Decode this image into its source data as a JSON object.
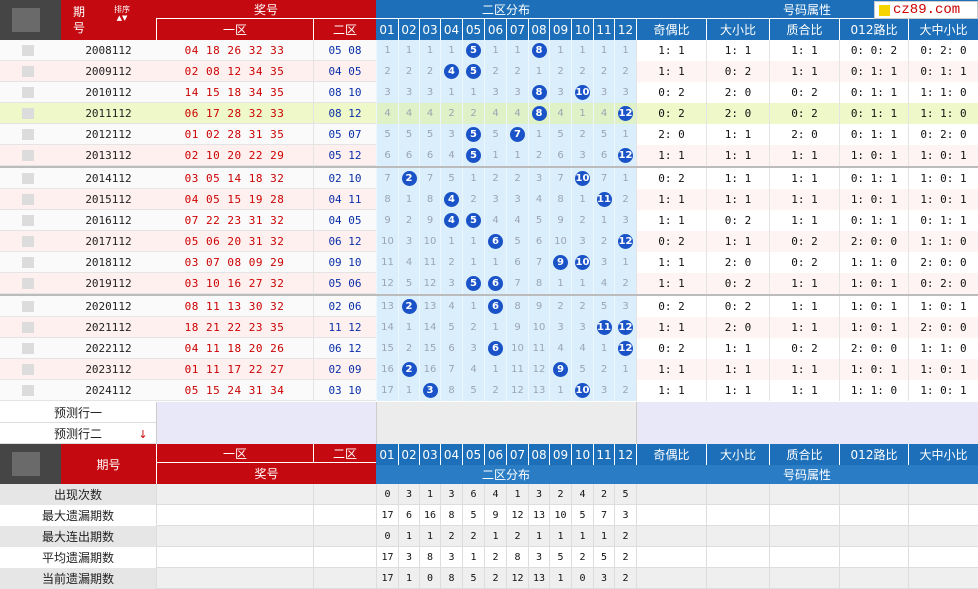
{
  "header": {
    "issue_label": "期号",
    "sort_label": "排序",
    "prize_label": "奖号",
    "zone1_label": "一区",
    "zone2_label": "二区",
    "dist_label": "二区分布",
    "attr_label": "号码属性",
    "dist_cols": [
      "01",
      "02",
      "03",
      "04",
      "05",
      "06",
      "07",
      "08",
      "09",
      "10",
      "11",
      "12"
    ],
    "attr_cols": [
      "奇偶比",
      "大小比",
      "质合比",
      "012路比",
      "大中小比"
    ]
  },
  "logo_text": "cz89.com",
  "rows": [
    {
      "issue": "2008112",
      "z1": "04 18 26 32 33",
      "z2": "05 08",
      "dist": [
        "1",
        "1",
        "1",
        "1",
        "5",
        "1",
        "1",
        "8",
        "1",
        "1",
        "1",
        "1"
      ],
      "balls": [
        5,
        8
      ],
      "attrs": [
        "1: 1",
        "1: 1",
        "1: 1",
        "0: 0: 2",
        "0: 2: 0"
      ]
    },
    {
      "issue": "2009112",
      "z1": "02 08 12 34 35",
      "z2": "04 05",
      "dist": [
        "2",
        "2",
        "2",
        "4",
        "5",
        "2",
        "2",
        "1",
        "2",
        "2",
        "2",
        "2"
      ],
      "balls": [
        4,
        5
      ],
      "attrs": [
        "1: 1",
        "0: 2",
        "1: 1",
        "0: 1: 1",
        "0: 1: 1"
      ]
    },
    {
      "issue": "2010112",
      "z1": "14 15 18 34 35",
      "z2": "08 10",
      "dist": [
        "3",
        "3",
        "3",
        "1",
        "1",
        "3",
        "3",
        "8",
        "3",
        "10",
        "3",
        "3"
      ],
      "balls": [
        8,
        10
      ],
      "attrs": [
        "0: 2",
        "2: 0",
        "0: 2",
        "0: 1: 1",
        "1: 1: 0"
      ]
    },
    {
      "issue": "2011112",
      "z1": "06 17 28 32 33",
      "z2": "08 12",
      "dist": [
        "4",
        "4",
        "4",
        "2",
        "2",
        "4",
        "4",
        "8",
        "4",
        "1",
        "4",
        "12"
      ],
      "balls": [
        8,
        12
      ],
      "attrs": [
        "0: 2",
        "2: 0",
        "0: 2",
        "0: 1: 1",
        "1: 1: 0"
      ]
    },
    {
      "issue": "2012112",
      "z1": "01 02 28 31 35",
      "z2": "05 07",
      "dist": [
        "5",
        "5",
        "5",
        "3",
        "5",
        "5",
        "7",
        "1",
        "5",
        "2",
        "5",
        "1"
      ],
      "balls": [
        5,
        7
      ],
      "attrs": [
        "2: 0",
        "1: 1",
        "2: 0",
        "0: 1: 1",
        "0: 2: 0"
      ]
    },
    {
      "issue": "2013112",
      "z1": "02 10 20 22 29",
      "z2": "05 12",
      "dist": [
        "6",
        "6",
        "6",
        "4",
        "5",
        "1",
        "1",
        "2",
        "6",
        "3",
        "6",
        "12"
      ],
      "balls": [
        5,
        12
      ],
      "attrs": [
        "1: 1",
        "1: 1",
        "1: 1",
        "1: 0: 1",
        "1: 0: 1"
      ]
    },
    {
      "issue": "2014112",
      "z1": "03 05 14 18 32",
      "z2": "02 10",
      "dist": [
        "7",
        "2",
        "7",
        "5",
        "1",
        "2",
        "2",
        "3",
        "7",
        "10",
        "7",
        "1"
      ],
      "balls": [
        2,
        10
      ],
      "attrs": [
        "0: 2",
        "1: 1",
        "1: 1",
        "0: 1: 1",
        "1: 0: 1"
      ]
    },
    {
      "issue": "2015112",
      "z1": "04 05 15 19 28",
      "z2": "04 11",
      "dist": [
        "8",
        "1",
        "8",
        "4",
        "2",
        "3",
        "3",
        "4",
        "8",
        "1",
        "11",
        "2"
      ],
      "balls": [
        4,
        11
      ],
      "attrs": [
        "1: 1",
        "1: 1",
        "1: 1",
        "1: 0: 1",
        "1: 0: 1"
      ]
    },
    {
      "issue": "2016112",
      "z1": "07 22 23 31 32",
      "z2": "04 05",
      "dist": [
        "9",
        "2",
        "9",
        "4",
        "5",
        "4",
        "4",
        "5",
        "9",
        "2",
        "1",
        "3"
      ],
      "balls": [
        4,
        5
      ],
      "attrs": [
        "1: 1",
        "0: 2",
        "1: 1",
        "0: 1: 1",
        "0: 1: 1"
      ]
    },
    {
      "issue": "2017112",
      "z1": "05 06 20 31 32",
      "z2": "06 12",
      "dist": [
        "10",
        "3",
        "10",
        "1",
        "1",
        "6",
        "5",
        "6",
        "10",
        "3",
        "2",
        "12"
      ],
      "balls": [
        6,
        12
      ],
      "attrs": [
        "0: 2",
        "1: 1",
        "0: 2",
        "2: 0: 0",
        "1: 1: 0"
      ]
    },
    {
      "issue": "2018112",
      "z1": "03 07 08 09 29",
      "z2": "09 10",
      "dist": [
        "11",
        "4",
        "11",
        "2",
        "1",
        "1",
        "6",
        "7",
        "9",
        "10",
        "3",
        "1"
      ],
      "balls": [
        9,
        10
      ],
      "attrs": [
        "1: 1",
        "2: 0",
        "0: 2",
        "1: 1: 0",
        "2: 0: 0"
      ]
    },
    {
      "issue": "2019112",
      "z1": "03 10 16 27 32",
      "z2": "05 06",
      "dist": [
        "12",
        "5",
        "12",
        "3",
        "5",
        "6",
        "7",
        "8",
        "1",
        "1",
        "4",
        "2"
      ],
      "balls": [
        5,
        6
      ],
      "attrs": [
        "1: 1",
        "0: 2",
        "1: 1",
        "1: 0: 1",
        "0: 2: 0"
      ]
    },
    {
      "issue": "2020112",
      "z1": "08 11 13 30 32",
      "z2": "02 06",
      "dist": [
        "13",
        "2",
        "13",
        "4",
        "1",
        "6",
        "8",
        "9",
        "2",
        "2",
        "5",
        "3"
      ],
      "balls": [
        2,
        6
      ],
      "attrs": [
        "0: 2",
        "0: 2",
        "1: 1",
        "1: 0: 1",
        "1: 0: 1"
      ]
    },
    {
      "issue": "2021112",
      "z1": "18 21 22 23 35",
      "z2": "11 12",
      "dist": [
        "14",
        "1",
        "14",
        "5",
        "2",
        "1",
        "9",
        "10",
        "3",
        "3",
        "11",
        "12"
      ],
      "balls": [
        11,
        12
      ],
      "attrs": [
        "1: 1",
        "2: 0",
        "1: 1",
        "1: 0: 1",
        "2: 0: 0"
      ]
    },
    {
      "issue": "2022112",
      "z1": "04 11 18 20 26",
      "z2": "06 12",
      "dist": [
        "15",
        "2",
        "15",
        "6",
        "3",
        "6",
        "10",
        "11",
        "4",
        "4",
        "1",
        "12"
      ],
      "balls": [
        6,
        12
      ],
      "attrs": [
        "0: 2",
        "1: 1",
        "0: 2",
        "2: 0: 0",
        "1: 1: 0"
      ]
    },
    {
      "issue": "2023112",
      "z1": "01 11 17 22 27",
      "z2": "02 09",
      "dist": [
        "16",
        "2",
        "16",
        "7",
        "4",
        "1",
        "11",
        "12",
        "9",
        "5",
        "2",
        "1"
      ],
      "balls": [
        2,
        9
      ],
      "attrs": [
        "1: 1",
        "1: 1",
        "1: 1",
        "1: 0: 1",
        "1: 0: 1"
      ]
    },
    {
      "issue": "2024112",
      "z1": "05 15 24 31 34",
      "z2": "03 10",
      "dist": [
        "17",
        "1",
        "3",
        "8",
        "5",
        "2",
        "12",
        "13",
        "1",
        "10",
        "3",
        "2"
      ],
      "balls": [
        3,
        10
      ],
      "attrs": [
        "1: 1",
        "1: 1",
        "1: 1",
        "1: 1: 0",
        "1: 0: 1"
      ]
    }
  ],
  "predict": [
    "预测行一",
    "预测行二"
  ],
  "footer": {
    "issue_label": "期号",
    "zone1_label": "一区",
    "zone2_label": "二区",
    "prize_label": "奖号",
    "dist_label": "二区分布",
    "attr_label": "号码属性"
  },
  "stats": [
    {
      "label": "出现次数",
      "values": [
        "0",
        "3",
        "1",
        "3",
        "6",
        "4",
        "1",
        "3",
        "2",
        "4",
        "2",
        "5"
      ]
    },
    {
      "label": "最大遗漏期数",
      "values": [
        "17",
        "6",
        "16",
        "8",
        "5",
        "9",
        "12",
        "13",
        "10",
        "5",
        "7",
        "3"
      ]
    },
    {
      "label": "最大连出期数",
      "values": [
        "0",
        "1",
        "1",
        "2",
        "2",
        "1",
        "2",
        "1",
        "1",
        "1",
        "1",
        "2"
      ]
    },
    {
      "label": "平均遗漏期数",
      "values": [
        "17",
        "3",
        "8",
        "3",
        "1",
        "2",
        "8",
        "3",
        "5",
        "2",
        "5",
        "2"
      ]
    },
    {
      "label": "当前遗漏期数",
      "values": [
        "17",
        "1",
        "0",
        "8",
        "5",
        "2",
        "12",
        "13",
        "1",
        "0",
        "3",
        "2"
      ]
    }
  ],
  "colors": {
    "red": "#c40a10",
    "blue": "#1c6fb8",
    "ball": "#1a53c8",
    "highlight": "#eef8c8"
  }
}
